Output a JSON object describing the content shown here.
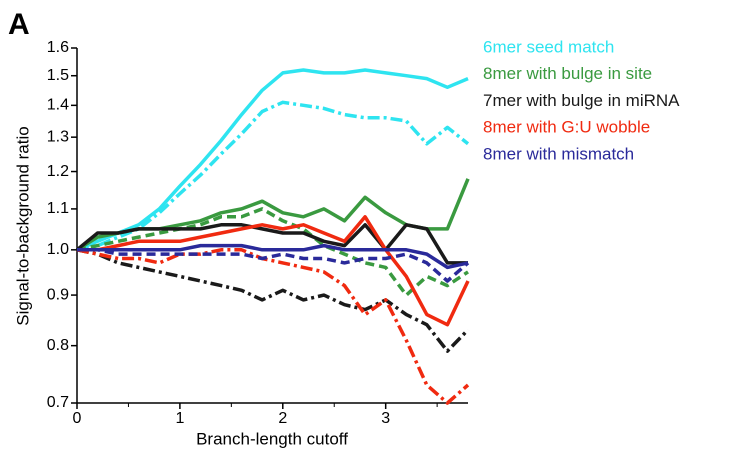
{
  "chart_data": {
    "type": "line",
    "panel_label": "A",
    "x_label": "Branch-length cutoff",
    "y_label": "Signal-to-background ratio",
    "log_y": true,
    "xlim": [
      0,
      3.8
    ],
    "xticks": [
      0,
      1,
      2,
      3
    ],
    "ylim": [
      0.7,
      1.6
    ],
    "yticks": [
      0.7,
      0.8,
      0.9,
      {
        "value": 1,
        "label": "1.0"
      },
      1.1,
      1.2,
      1.3,
      1.4,
      1.5,
      1.6
    ],
    "x": [
      0,
      0.2,
      0.4,
      0.6,
      0.8,
      1,
      1.2,
      1.4,
      1.6,
      1.8,
      2,
      2.2,
      2.4,
      2.6,
      2.8,
      3,
      3.2,
      3.4,
      3.6,
      3.8
    ],
    "series": [
      {
        "name": "6mer seed match",
        "color": "#2ee4f0",
        "lines": [
          {
            "dash": "solid",
            "values": [
              1,
              1.02,
              1.04,
              1.06,
              1.1,
              1.16,
              1.22,
              1.29,
              1.37,
              1.45,
              1.51,
              1.52,
              1.51,
              1.51,
              1.52,
              1.51,
              1.5,
              1.49,
              1.46,
              1.49
            ]
          },
          {
            "dash": "dash-dot",
            "values": [
              1,
              1.01,
              1.03,
              1.05,
              1.09,
              1.14,
              1.19,
              1.25,
              1.31,
              1.38,
              1.41,
              1.4,
              1.39,
              1.37,
              1.36,
              1.36,
              1.35,
              1.28,
              1.33,
              1.28
            ]
          }
        ]
      },
      {
        "name": "8mer with bulge in site",
        "color": "#3a9a40",
        "lines": [
          {
            "dash": "solid",
            "values": [
              1,
              1.03,
              1.04,
              1.05,
              1.05,
              1.06,
              1.07,
              1.09,
              1.1,
              1.12,
              1.09,
              1.08,
              1.1,
              1.07,
              1.13,
              1.09,
              1.06,
              1.05,
              1.05,
              1.18
            ]
          },
          {
            "dash": "dashed",
            "values": [
              1,
              1.01,
              1.02,
              1.03,
              1.04,
              1.05,
              1.06,
              1.08,
              1.08,
              1.1,
              1.07,
              1.05,
              1.01,
              0.99,
              0.97,
              0.96,
              0.9,
              0.94,
              0.92,
              0.95
            ]
          }
        ]
      },
      {
        "name": "7mer with bulge in miRNA",
        "color": "#1a1a1a",
        "lines": [
          {
            "dash": "solid",
            "values": [
              1,
              1.04,
              1.04,
              1.05,
              1.05,
              1.05,
              1.05,
              1.06,
              1.06,
              1.05,
              1.04,
              1.04,
              1.02,
              1.01,
              1.06,
              1,
              1.06,
              1.05,
              0.97,
              0.97
            ]
          },
          {
            "dash": "dash-dot",
            "values": [
              1,
              0.99,
              0.97,
              0.96,
              0.95,
              0.94,
              0.93,
              0.92,
              0.91,
              0.89,
              0.91,
              0.89,
              0.9,
              0.88,
              0.87,
              0.89,
              0.86,
              0.84,
              0.79,
              0.83
            ]
          }
        ]
      },
      {
        "name": "8mer with G:U wobble",
        "color": "#f02a10",
        "lines": [
          {
            "dash": "solid",
            "values": [
              1,
              1,
              1.01,
              1.02,
              1.02,
              1.02,
              1.03,
              1.04,
              1.05,
              1.06,
              1.05,
              1.06,
              1.04,
              1.02,
              1.08,
              1,
              0.94,
              0.86,
              0.84,
              0.93
            ]
          },
          {
            "dash": "dash-dot",
            "values": [
              1,
              0.99,
              0.98,
              0.98,
              0.97,
              0.99,
              0.99,
              1,
              1,
              0.98,
              0.97,
              0.96,
              0.95,
              0.92,
              0.86,
              0.89,
              0.81,
              0.73,
              0.7,
              0.73
            ]
          }
        ]
      },
      {
        "name": "8mer with mismatch",
        "color": "#2a2a9a",
        "lines": [
          {
            "dash": "solid",
            "values": [
              1,
              1,
              1,
              1,
              1,
              1,
              1.01,
              1.01,
              1.01,
              1,
              1,
              1,
              1.01,
              1,
              1,
              1,
              1,
              0.99,
              0.96,
              0.97
            ]
          },
          {
            "dash": "dashed",
            "values": [
              1,
              1,
              0.99,
              0.99,
              0.99,
              0.99,
              0.99,
              0.99,
              0.99,
              0.98,
              0.99,
              0.98,
              0.98,
              0.97,
              0.98,
              0.98,
              0.99,
              0.97,
              0.93,
              0.97
            ]
          }
        ]
      }
    ]
  }
}
